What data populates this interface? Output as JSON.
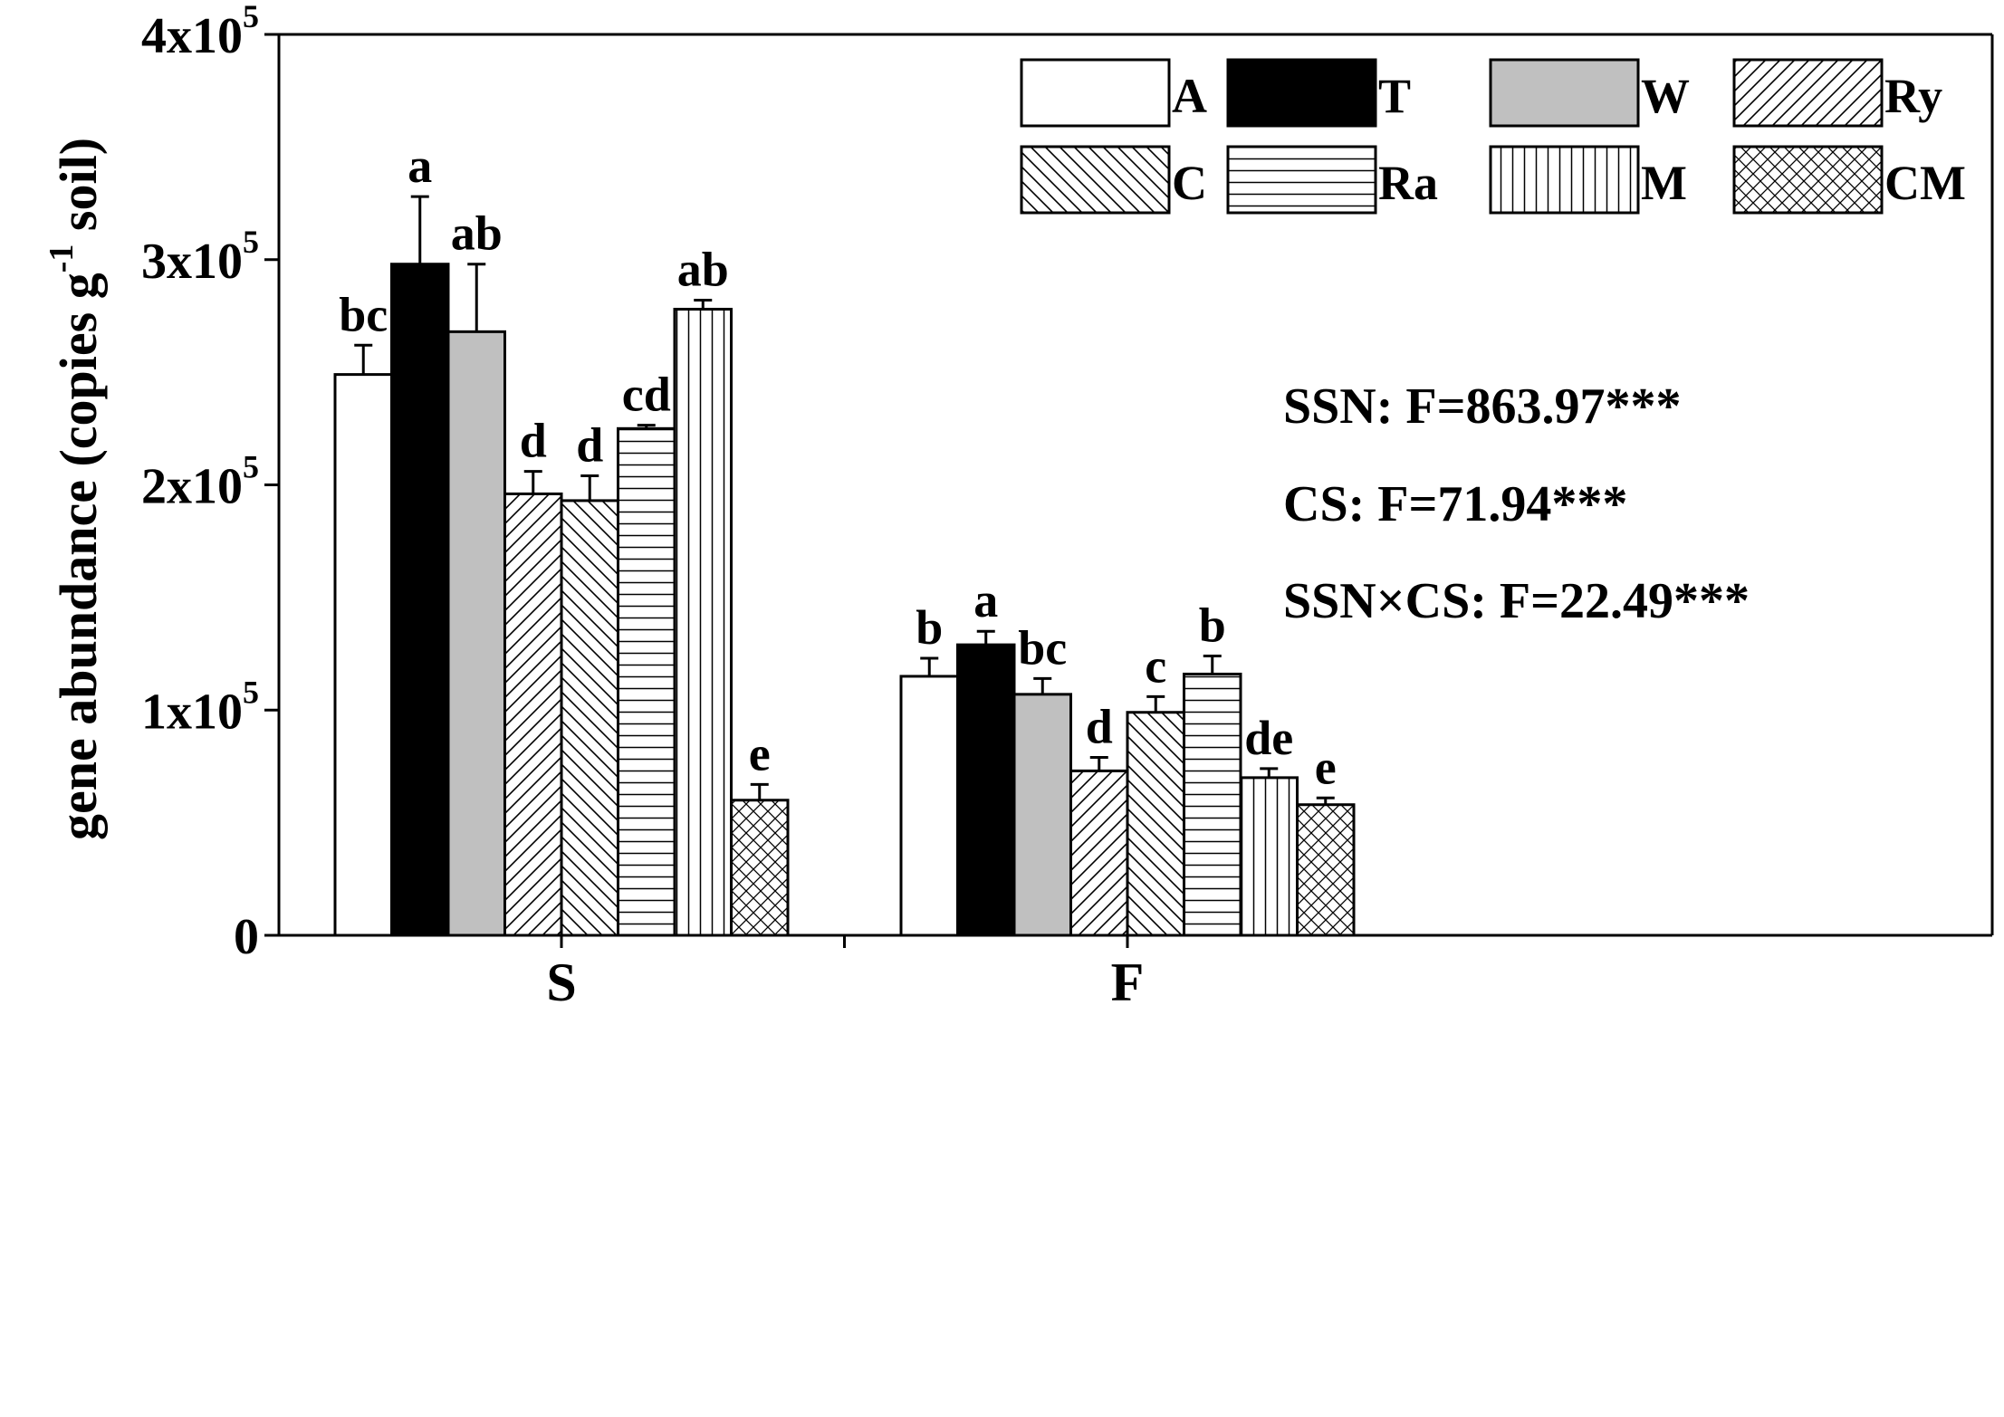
{
  "chart_data": {
    "type": "bar",
    "ylabel": "gene abundance (copies g-1 soil)",
    "ylabel_parts": {
      "pre": "gene abundance (copies g",
      "sup": "-1",
      "post": " soil)"
    },
    "ylim": [
      0,
      400000
    ],
    "yticks": [
      {
        "value": 0,
        "mant": "0",
        "exp": ""
      },
      {
        "value": 100000,
        "mant": "1x10",
        "exp": "5"
      },
      {
        "value": 200000,
        "mant": "2x10",
        "exp": "5"
      },
      {
        "value": 300000,
        "mant": "3x10",
        "exp": "5"
      },
      {
        "value": 400000,
        "mant": "4x10",
        "exp": "5"
      }
    ],
    "categories": [
      "S",
      "F"
    ],
    "series": [
      {
        "name": "A",
        "pattern": "white",
        "values": [
          249000,
          115000
        ],
        "errors": [
          13000,
          8000
        ],
        "letters": [
          "bc",
          "b"
        ]
      },
      {
        "name": "T",
        "pattern": "black",
        "values": [
          298000,
          129000
        ],
        "errors": [
          30000,
          6000
        ],
        "letters": [
          "a",
          "a"
        ]
      },
      {
        "name": "W",
        "pattern": "gray",
        "values": [
          268000,
          107000
        ],
        "errors": [
          30000,
          7000
        ],
        "letters": [
          "ab",
          "bc"
        ]
      },
      {
        "name": "Ry",
        "pattern": "fdiag",
        "values": [
          196000,
          73000
        ],
        "errors": [
          10000,
          6000
        ],
        "letters": [
          "d",
          "d"
        ]
      },
      {
        "name": "C",
        "pattern": "bdiag",
        "values": [
          193000,
          99000
        ],
        "errors": [
          11000,
          7000
        ],
        "letters": [
          "d",
          "c"
        ]
      },
      {
        "name": "Ra",
        "pattern": "hlines",
        "values": [
          225000,
          116000
        ],
        "errors": [
          1500,
          8000
        ],
        "letters": [
          "cd",
          "b"
        ]
      },
      {
        "name": "M",
        "pattern": "vlines",
        "values": [
          278000,
          70000
        ],
        "errors": [
          4000,
          4000
        ],
        "letters": [
          "ab",
          "de"
        ]
      },
      {
        "name": "CM",
        "pattern": "cross",
        "values": [
          60000,
          58000
        ],
        "errors": [
          7000,
          3000
        ],
        "letters": [
          "e",
          "e"
        ]
      }
    ],
    "legend_position": "top-right",
    "legend_order": [
      "A",
      "T",
      "W",
      "Ry",
      "C",
      "Ra",
      "M",
      "CM"
    ],
    "annotations": [
      "SSN: F=863.97***",
      "CS: F=71.94***",
      "SSN×CS: F=22.49***"
    ]
  }
}
